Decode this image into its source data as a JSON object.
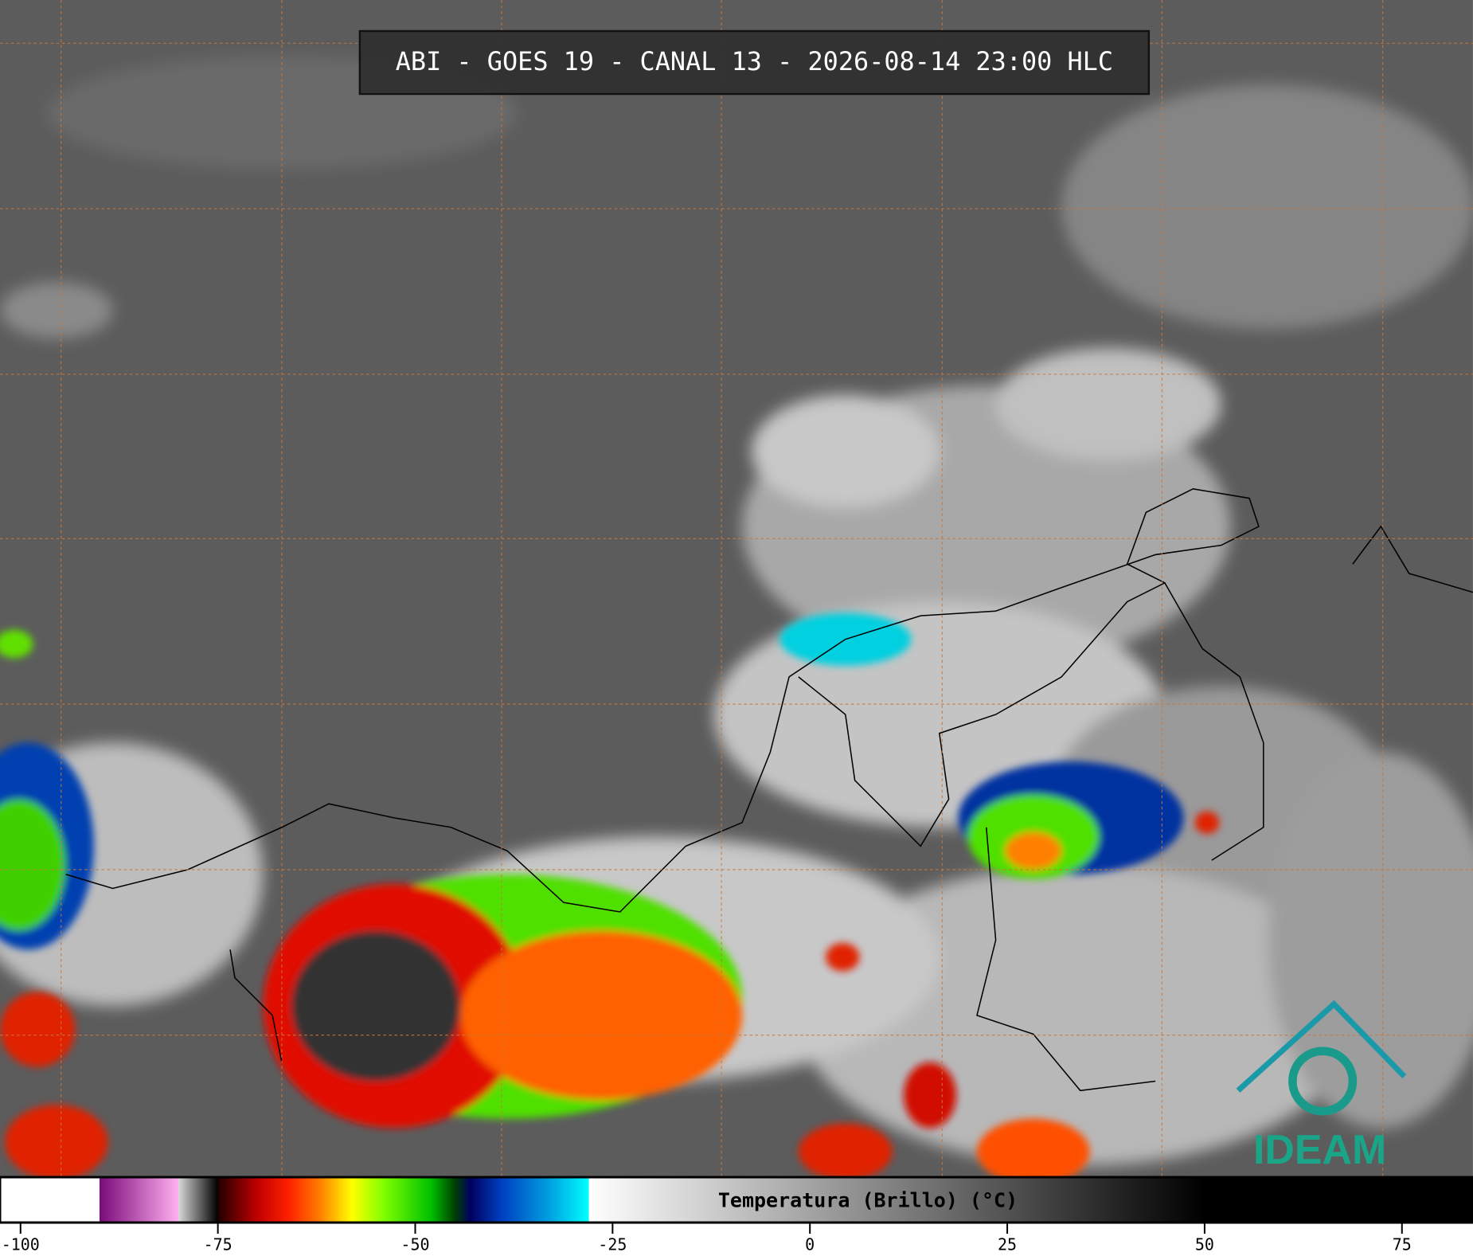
{
  "title": "ABI - GOES 19 - CANAL 13 - 2026-08-14 23:00 HLC",
  "colorbar": {
    "label": "Temperatura (Brillo) (°C)",
    "lim": [
      -102.6,
      84
    ],
    "ticks": [
      -100,
      -75,
      -50,
      -25,
      0,
      25,
      50,
      75
    ],
    "colormap": [
      [
        -102.6,
        "#ffffff"
      ],
      [
        -90,
        "#ffffff"
      ],
      [
        -90,
        "#7a0a7a"
      ],
      [
        -80,
        "#ffb0f0"
      ],
      [
        -80,
        "#d8d8d8"
      ],
      [
        -75,
        "#000000"
      ],
      [
        -75,
        "#200000"
      ],
      [
        -70,
        "#c00000"
      ],
      [
        -66,
        "#ff2000"
      ],
      [
        -62,
        "#ff8000"
      ],
      [
        -58,
        "#ffff00"
      ],
      [
        -54,
        "#80ff00"
      ],
      [
        -48,
        "#00c000"
      ],
      [
        -45,
        "#004000"
      ],
      [
        -43,
        "#000060"
      ],
      [
        -39,
        "#0040c0"
      ],
      [
        -33,
        "#00a0e0"
      ],
      [
        -28,
        "#00ffff"
      ],
      [
        -28,
        "#ffffff"
      ],
      [
        50,
        "#000000"
      ],
      [
        84,
        "#000000"
      ]
    ]
  },
  "logo": {
    "text": "IDEAM"
  }
}
